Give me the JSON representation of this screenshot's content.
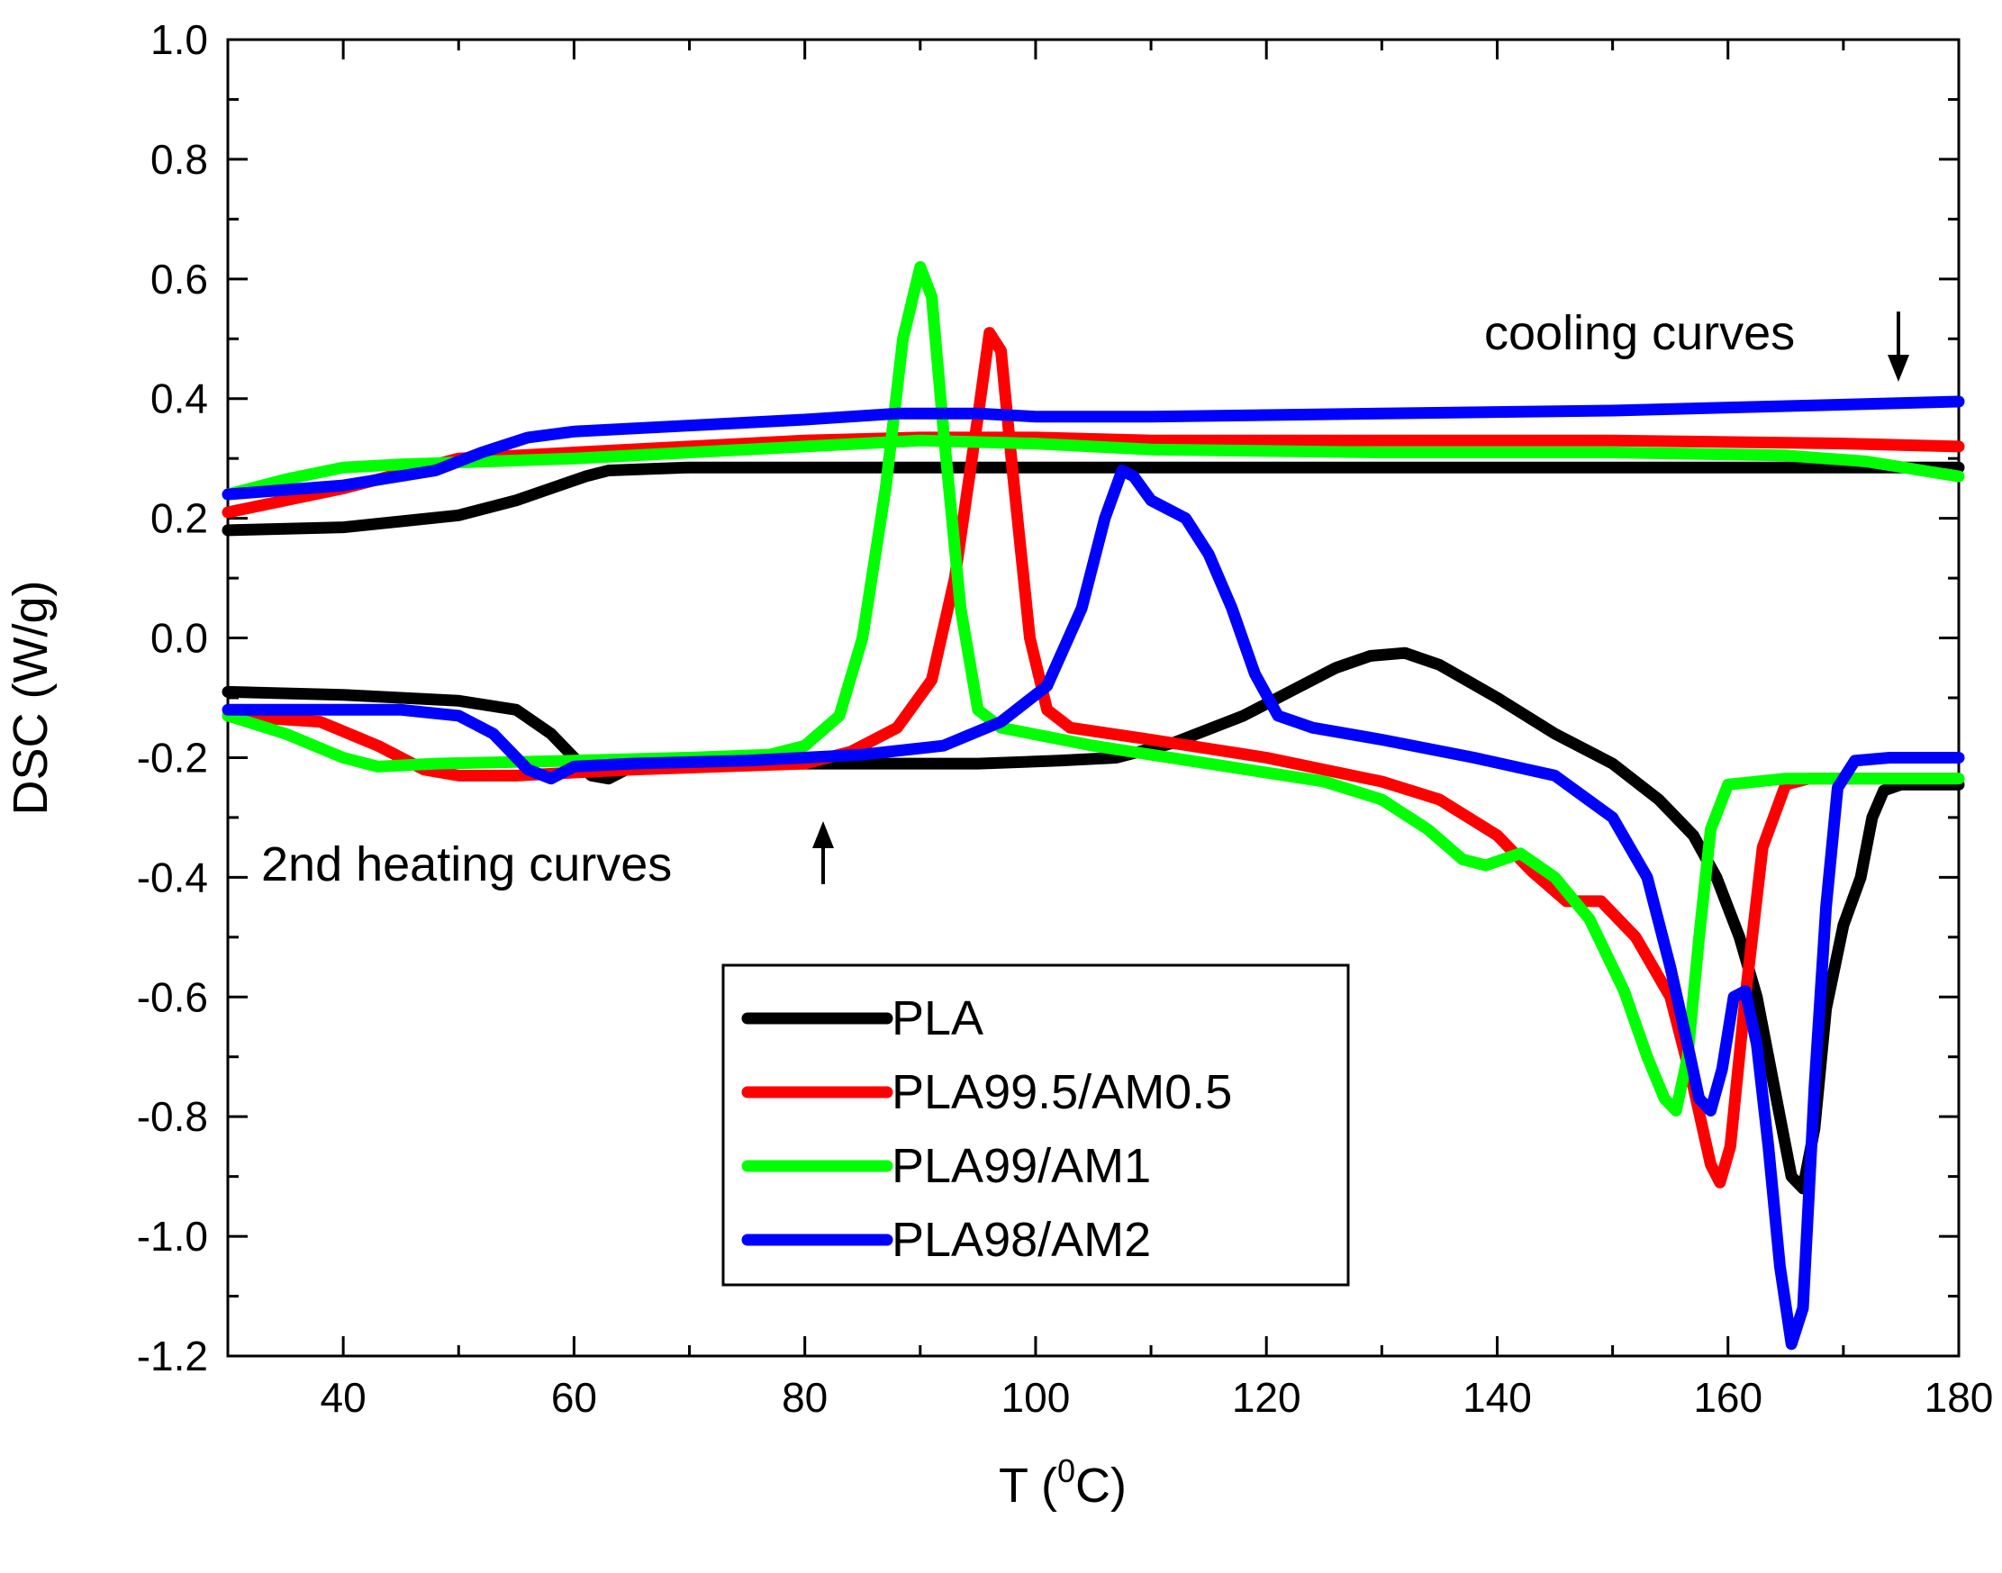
{
  "chart_data": {
    "type": "line",
    "xlabel": "T (",
    "xlabel_sup": "0",
    "xlabel_tail": "C)",
    "ylabel": "DSC (W/g)",
    "xlim": [
      30,
      180
    ],
    "ylim": [
      -1.2,
      1.0
    ],
    "xticks": [
      40,
      60,
      80,
      100,
      120,
      140,
      160,
      180
    ],
    "yticks": [
      -1.2,
      -1.0,
      -0.8,
      -0.6,
      -0.4,
      -0.2,
      0.0,
      0.2,
      0.4,
      0.6,
      0.8,
      1.0
    ],
    "grid": false,
    "legend_position": "bottom-center",
    "annotations": {
      "cooling": "cooling curves",
      "heating": "2nd heating curves"
    },
    "series": [
      {
        "name": "PLA",
        "color": "#000000",
        "cooling": [
          [
            30,
            0.18
          ],
          [
            40,
            0.185
          ],
          [
            45,
            0.195
          ],
          [
            50,
            0.205
          ],
          [
            55,
            0.23
          ],
          [
            58,
            0.25
          ],
          [
            61,
            0.27
          ],
          [
            63,
            0.28
          ],
          [
            70,
            0.285
          ],
          [
            100,
            0.285
          ],
          [
            150,
            0.285
          ],
          [
            180,
            0.285
          ]
        ],
        "heating": [
          [
            30,
            -0.09
          ],
          [
            40,
            -0.095
          ],
          [
            50,
            -0.105
          ],
          [
            55,
            -0.12
          ],
          [
            58,
            -0.16
          ],
          [
            60,
            -0.2
          ],
          [
            61.5,
            -0.23
          ],
          [
            63,
            -0.235
          ],
          [
            64.5,
            -0.22
          ],
          [
            66,
            -0.21
          ],
          [
            80,
            -0.21
          ],
          [
            95,
            -0.21
          ],
          [
            102,
            -0.205
          ],
          [
            107,
            -0.2
          ],
          [
            112,
            -0.175
          ],
          [
            118,
            -0.13
          ],
          [
            122,
            -0.09
          ],
          [
            126,
            -0.05
          ],
          [
            129,
            -0.03
          ],
          [
            132,
            -0.025
          ],
          [
            135,
            -0.045
          ],
          [
            140,
            -0.1
          ],
          [
            145,
            -0.16
          ],
          [
            150,
            -0.21
          ],
          [
            154,
            -0.27
          ],
          [
            157,
            -0.33
          ],
          [
            159,
            -0.4
          ],
          [
            161,
            -0.5
          ],
          [
            162.5,
            -0.6
          ],
          [
            164,
            -0.75
          ],
          [
            165.5,
            -0.9
          ],
          [
            166.5,
            -0.92
          ],
          [
            167.5,
            -0.82
          ],
          [
            168.5,
            -0.62
          ],
          [
            170,
            -0.48
          ],
          [
            171.5,
            -0.4
          ],
          [
            172.5,
            -0.3
          ],
          [
            173.5,
            -0.255
          ],
          [
            175,
            -0.245
          ],
          [
            180,
            -0.245
          ]
        ]
      },
      {
        "name": "PLA99.5/AM0.5",
        "color": "#ff0000",
        "cooling": [
          [
            30,
            0.21
          ],
          [
            40,
            0.25
          ],
          [
            50,
            0.3
          ],
          [
            60,
            0.31
          ],
          [
            70,
            0.32
          ],
          [
            80,
            0.33
          ],
          [
            90,
            0.335
          ],
          [
            100,
            0.335
          ],
          [
            110,
            0.33
          ],
          [
            130,
            0.33
          ],
          [
            150,
            0.33
          ],
          [
            170,
            0.325
          ],
          [
            180,
            0.32
          ]
        ],
        "heating": [
          [
            30,
            -0.13
          ],
          [
            38,
            -0.14
          ],
          [
            43,
            -0.18
          ],
          [
            47,
            -0.22
          ],
          [
            50,
            -0.23
          ],
          [
            55,
            -0.23
          ],
          [
            65,
            -0.22
          ],
          [
            80,
            -0.21
          ],
          [
            84,
            -0.19
          ],
          [
            88,
            -0.15
          ],
          [
            91,
            -0.07
          ],
          [
            93,
            0.1
          ],
          [
            95,
            0.37
          ],
          [
            96,
            0.51
          ],
          [
            97,
            0.48
          ],
          [
            98,
            0.28
          ],
          [
            99.5,
            0.0
          ],
          [
            101,
            -0.12
          ],
          [
            103,
            -0.15
          ],
          [
            110,
            -0.17
          ],
          [
            120,
            -0.2
          ],
          [
            130,
            -0.24
          ],
          [
            135,
            -0.27
          ],
          [
            140,
            -0.33
          ],
          [
            143,
            -0.39
          ],
          [
            146,
            -0.44
          ],
          [
            149,
            -0.44
          ],
          [
            152,
            -0.5
          ],
          [
            155,
            -0.6
          ],
          [
            157,
            -0.75
          ],
          [
            158.5,
            -0.88
          ],
          [
            159.3,
            -0.91
          ],
          [
            160.2,
            -0.85
          ],
          [
            161.5,
            -0.6
          ],
          [
            163,
            -0.35
          ],
          [
            165,
            -0.245
          ],
          [
            167,
            -0.235
          ],
          [
            180,
            -0.235
          ]
        ]
      },
      {
        "name": "PLA99/AM1",
        "color": "#00ff00",
        "cooling": [
          [
            30,
            0.24
          ],
          [
            35,
            0.265
          ],
          [
            40,
            0.285
          ],
          [
            45,
            0.29
          ],
          [
            60,
            0.3
          ],
          [
            80,
            0.32
          ],
          [
            90,
            0.33
          ],
          [
            100,
            0.325
          ],
          [
            110,
            0.315
          ],
          [
            130,
            0.31
          ],
          [
            150,
            0.31
          ],
          [
            165,
            0.305
          ],
          [
            172,
            0.295
          ],
          [
            180,
            0.27
          ]
        ],
        "heating": [
          [
            30,
            -0.13
          ],
          [
            35,
            -0.16
          ],
          [
            40,
            -0.2
          ],
          [
            43,
            -0.215
          ],
          [
            48,
            -0.21
          ],
          [
            60,
            -0.205
          ],
          [
            70,
            -0.2
          ],
          [
            77,
            -0.195
          ],
          [
            80,
            -0.18
          ],
          [
            83,
            -0.13
          ],
          [
            85,
            0.0
          ],
          [
            87,
            0.25
          ],
          [
            88.5,
            0.5
          ],
          [
            90,
            0.62
          ],
          [
            91,
            0.57
          ],
          [
            92,
            0.35
          ],
          [
            93.5,
            0.05
          ],
          [
            95,
            -0.12
          ],
          [
            97,
            -0.15
          ],
          [
            105,
            -0.18
          ],
          [
            115,
            -0.21
          ],
          [
            125,
            -0.24
          ],
          [
            130,
            -0.27
          ],
          [
            134,
            -0.32
          ],
          [
            137,
            -0.37
          ],
          [
            139,
            -0.38
          ],
          [
            142,
            -0.36
          ],
          [
            145,
            -0.4
          ],
          [
            148,
            -0.47
          ],
          [
            151,
            -0.59
          ],
          [
            153,
            -0.7
          ],
          [
            154.5,
            -0.77
          ],
          [
            155.5,
            -0.79
          ],
          [
            156.5,
            -0.7
          ],
          [
            157.5,
            -0.5
          ],
          [
            158.5,
            -0.32
          ],
          [
            160,
            -0.245
          ],
          [
            165,
            -0.235
          ],
          [
            180,
            -0.235
          ]
        ]
      },
      {
        "name": "PLA98/AM2",
        "color": "#0000ff",
        "cooling": [
          [
            30,
            0.24
          ],
          [
            40,
            0.255
          ],
          [
            48,
            0.28
          ],
          [
            52,
            0.31
          ],
          [
            56,
            0.335
          ],
          [
            60,
            0.345
          ],
          [
            70,
            0.355
          ],
          [
            80,
            0.365
          ],
          [
            88,
            0.375
          ],
          [
            95,
            0.375
          ],
          [
            100,
            0.37
          ],
          [
            110,
            0.37
          ],
          [
            130,
            0.375
          ],
          [
            150,
            0.38
          ],
          [
            170,
            0.39
          ],
          [
            180,
            0.395
          ]
        ],
        "heating": [
          [
            30,
            -0.12
          ],
          [
            45,
            -0.12
          ],
          [
            50,
            -0.13
          ],
          [
            53,
            -0.16
          ],
          [
            56,
            -0.22
          ],
          [
            58,
            -0.235
          ],
          [
            60,
            -0.215
          ],
          [
            65,
            -0.21
          ],
          [
            75,
            -0.205
          ],
          [
            85,
            -0.195
          ],
          [
            92,
            -0.18
          ],
          [
            97,
            -0.14
          ],
          [
            101,
            -0.08
          ],
          [
            104,
            0.05
          ],
          [
            106,
            0.2
          ],
          [
            107.5,
            0.28
          ],
          [
            108.5,
            0.27
          ],
          [
            110,
            0.23
          ],
          [
            113,
            0.2
          ],
          [
            115,
            0.14
          ],
          [
            117,
            0.05
          ],
          [
            119,
            -0.06
          ],
          [
            121,
            -0.13
          ],
          [
            124,
            -0.15
          ],
          [
            130,
            -0.17
          ],
          [
            138,
            -0.2
          ],
          [
            145,
            -0.23
          ],
          [
            150,
            -0.3
          ],
          [
            153,
            -0.4
          ],
          [
            155,
            -0.55
          ],
          [
            156.5,
            -0.68
          ],
          [
            157.5,
            -0.77
          ],
          [
            158.5,
            -0.79
          ],
          [
            159.5,
            -0.72
          ],
          [
            160.5,
            -0.6
          ],
          [
            161.5,
            -0.59
          ],
          [
            162.5,
            -0.68
          ],
          [
            163.5,
            -0.85
          ],
          [
            164.5,
            -1.05
          ],
          [
            165.5,
            -1.18
          ],
          [
            166.5,
            -1.12
          ],
          [
            167.5,
            -0.75
          ],
          [
            168.5,
            -0.45
          ],
          [
            169.5,
            -0.25
          ],
          [
            171,
            -0.205
          ],
          [
            174,
            -0.2
          ],
          [
            180,
            -0.2
          ]
        ]
      }
    ]
  }
}
